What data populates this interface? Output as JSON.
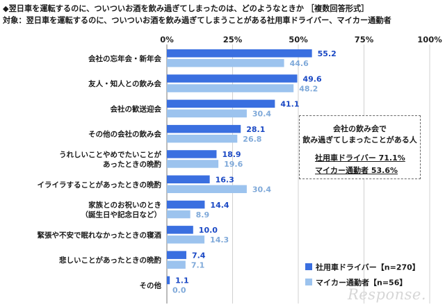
{
  "chart_data": {
    "type": "bar",
    "orientation": "horizontal",
    "title": "◆翌日車を運転するのに、ついついお酒を飲み過ぎてしまったのは、どのようなときか ［複数回答形式］",
    "subtitle": "対象：翌日車を運転するのに、ついついお酒を飲み過ぎてしまうことがある社用車ドライバー、マイカー通勤者",
    "x_ticks": [
      "0%",
      "25%",
      "50%",
      "75%",
      "100%"
    ],
    "xlim": [
      0,
      100
    ],
    "grid": true,
    "categories": [
      [
        "会社の忘年会・新年会"
      ],
      [
        "友人・知人との飲み会"
      ],
      [
        "会社の歓送迎会"
      ],
      [
        "その他の会社の飲み会"
      ],
      [
        "うれしいことやめでたいことが",
        "あったときの晩酌"
      ],
      [
        "イライラすることがあったときの晩酌"
      ],
      [
        "家族とのお祝いのとき",
        "（誕生日や記念日など）"
      ],
      [
        "緊張や不安で眠れなかったときの寝酒"
      ],
      [
        "悲しいことがあったときの晩酌"
      ],
      [
        "その他"
      ]
    ],
    "series": [
      {
        "name": "社用車ドライバー【n=270】",
        "color": "#3a6fe0",
        "values": [
          55.2,
          49.6,
          41.1,
          28.1,
          18.9,
          16.3,
          14.4,
          10.0,
          7.4,
          1.1
        ]
      },
      {
        "name": "マイカー通勤者【n=56】",
        "color": "#9cc3ee",
        "values": [
          44.6,
          48.2,
          30.4,
          26.8,
          19.6,
          30.4,
          8.9,
          14.3,
          7.1,
          0.0
        ]
      }
    ],
    "legend_position": "bottom-right",
    "annotation": {
      "heading_line1": "会社の飲み会で",
      "heading_line2": "飲み過ぎてしまったことがある人",
      "line1": "社用車ドライバー 71.1%",
      "line2": "マイカー通勤者 53.6%"
    }
  },
  "watermark": "Response."
}
